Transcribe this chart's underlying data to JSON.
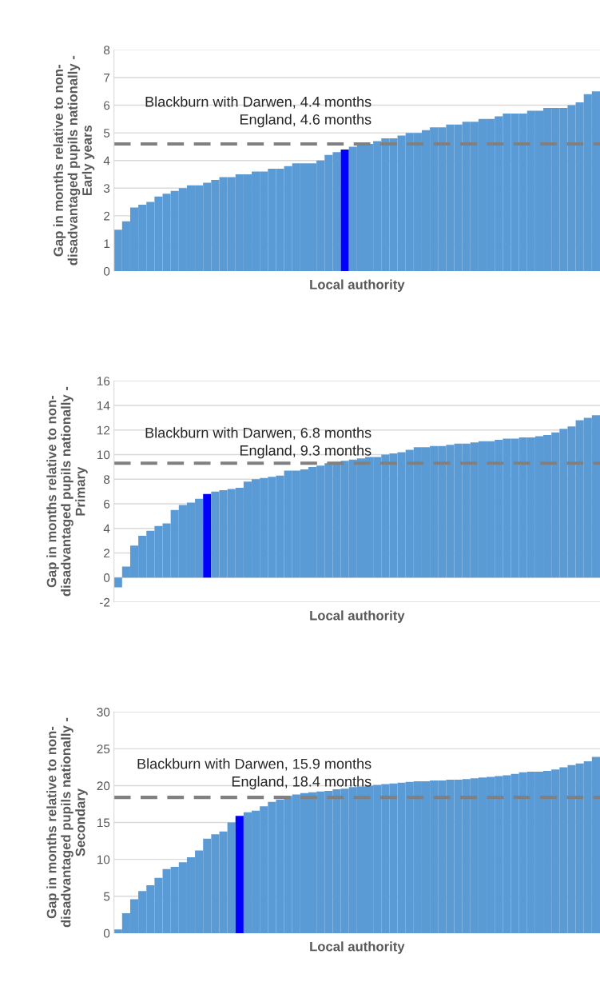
{
  "chart_data": [
    {
      "type": "bar",
      "ylabel": "Gap in months relative to non-\ndisadvantaged pupils nationally -\nEarly years",
      "xlabel": "Local authority",
      "categories": [
        null,
        null,
        null,
        null,
        null,
        null,
        null,
        null,
        null,
        null,
        null,
        null,
        null,
        null,
        null,
        null,
        null,
        null,
        null,
        null,
        null,
        null,
        null,
        null,
        null,
        null,
        null,
        null,
        null,
        null,
        null,
        null,
        null,
        null,
        null,
        null,
        null,
        null,
        null,
        null,
        null,
        null,
        null,
        null,
        null,
        null,
        null,
        null,
        null,
        null,
        null,
        null,
        null,
        null,
        null,
        null,
        null,
        null,
        null,
        null
      ],
      "values": [
        1.5,
        1.8,
        2.3,
        2.4,
        2.5,
        2.7,
        2.8,
        2.9,
        3.0,
        3.1,
        3.1,
        3.2,
        3.3,
        3.4,
        3.4,
        3.5,
        3.5,
        3.6,
        3.6,
        3.7,
        3.7,
        3.8,
        3.9,
        3.9,
        3.9,
        4.0,
        4.2,
        4.3,
        4.4,
        4.5,
        4.6,
        4.6,
        4.7,
        4.8,
        4.8,
        4.9,
        5.0,
        5.0,
        5.1,
        5.2,
        5.2,
        5.3,
        5.3,
        5.4,
        5.4,
        5.5,
        5.5,
        5.6,
        5.7,
        5.7,
        5.7,
        5.8,
        5.8,
        5.9,
        5.9,
        5.9,
        6.0,
        6.1,
        6.4,
        6.5
      ],
      "colors": [
        "#5b9bd5",
        "#5b9bd5",
        "#5b9bd5",
        "#5b9bd5",
        "#5b9bd5",
        "#5b9bd5",
        "#5b9bd5",
        "#5b9bd5",
        "#5b9bd5",
        "#5b9bd5",
        "#5b9bd5",
        "#5b9bd5",
        "#5b9bd5",
        "#5b9bd5",
        "#5b9bd5",
        "#5b9bd5",
        "#5b9bd5",
        "#5b9bd5",
        "#5b9bd5",
        "#5b9bd5",
        "#5b9bd5",
        "#5b9bd5",
        "#5b9bd5",
        "#5b9bd5",
        "#5b9bd5",
        "#5b9bd5",
        "#5b9bd5",
        "#5b9bd5",
        "#0000ff",
        "#5b9bd5",
        "#5b9bd5",
        "#5b9bd5",
        "#5b9bd5",
        "#5b9bd5",
        "#5b9bd5",
        "#5b9bd5",
        "#5b9bd5",
        "#5b9bd5",
        "#5b9bd5",
        "#5b9bd5",
        "#5b9bd5",
        "#5b9bd5",
        "#5b9bd5",
        "#5b9bd5",
        "#5b9bd5",
        "#5b9bd5",
        "#5b9bd5",
        "#5b9bd5",
        "#5b9bd5",
        "#5b9bd5",
        "#5b9bd5",
        "#5b9bd5",
        "#5b9bd5",
        "#5b9bd5",
        "#5b9bd5",
        "#5b9bd5",
        "#5b9bd5",
        "#5b9bd5",
        "#5b9bd5",
        "#5b9bd5"
      ],
      "ylim": [
        0,
        8
      ],
      "yticks": [
        0,
        1,
        2,
        3,
        4,
        5,
        6,
        7,
        8
      ],
      "grid": "y",
      "ref_lines": [
        {
          "axis": "y",
          "value": 4.6,
          "label": "England, 4.6 months",
          "color": "#808080",
          "line_style": "dashed"
        }
      ],
      "annotations": [
        "Blackburn with Darwen, 4.4 months"
      ]
    },
    {
      "type": "bar",
      "ylabel": "Gap in months relative to non-\ndisadvantaged pupils nationally -\nPrimary",
      "xlabel": "Local authority",
      "categories": [
        null,
        null,
        null,
        null,
        null,
        null,
        null,
        null,
        null,
        null,
        null,
        null,
        null,
        null,
        null,
        null,
        null,
        null,
        null,
        null,
        null,
        null,
        null,
        null,
        null,
        null,
        null,
        null,
        null,
        null,
        null,
        null,
        null,
        null,
        null,
        null,
        null,
        null,
        null,
        null,
        null,
        null,
        null,
        null,
        null,
        null,
        null,
        null,
        null,
        null,
        null,
        null,
        null,
        null,
        null,
        null,
        null,
        null,
        null,
        null
      ],
      "values": [
        -0.8,
        0.9,
        2.6,
        3.4,
        3.8,
        4.2,
        4.4,
        5.5,
        5.9,
        6.1,
        6.4,
        6.8,
        7.0,
        7.1,
        7.2,
        7.3,
        7.8,
        8.0,
        8.1,
        8.2,
        8.3,
        8.7,
        8.7,
        8.8,
        9.0,
        9.1,
        9.3,
        9.4,
        9.5,
        9.6,
        9.7,
        9.8,
        9.8,
        10.0,
        10.1,
        10.2,
        10.4,
        10.6,
        10.6,
        10.7,
        10.7,
        10.8,
        10.9,
        10.9,
        11.0,
        11.1,
        11.1,
        11.2,
        11.3,
        11.3,
        11.4,
        11.4,
        11.5,
        11.6,
        11.8,
        12.1,
        12.3,
        12.8,
        13.0,
        13.2
      ],
      "colors": [
        "#5b9bd5",
        "#5b9bd5",
        "#5b9bd5",
        "#5b9bd5",
        "#5b9bd5",
        "#5b9bd5",
        "#5b9bd5",
        "#5b9bd5",
        "#5b9bd5",
        "#5b9bd5",
        "#5b9bd5",
        "#0000ff",
        "#5b9bd5",
        "#5b9bd5",
        "#5b9bd5",
        "#5b9bd5",
        "#5b9bd5",
        "#5b9bd5",
        "#5b9bd5",
        "#5b9bd5",
        "#5b9bd5",
        "#5b9bd5",
        "#5b9bd5",
        "#5b9bd5",
        "#5b9bd5",
        "#5b9bd5",
        "#5b9bd5",
        "#5b9bd5",
        "#5b9bd5",
        "#5b9bd5",
        "#5b9bd5",
        "#5b9bd5",
        "#5b9bd5",
        "#5b9bd5",
        "#5b9bd5",
        "#5b9bd5",
        "#5b9bd5",
        "#5b9bd5",
        "#5b9bd5",
        "#5b9bd5",
        "#5b9bd5",
        "#5b9bd5",
        "#5b9bd5",
        "#5b9bd5",
        "#5b9bd5",
        "#5b9bd5",
        "#5b9bd5",
        "#5b9bd5",
        "#5b9bd5",
        "#5b9bd5",
        "#5b9bd5",
        "#5b9bd5",
        "#5b9bd5",
        "#5b9bd5",
        "#5b9bd5",
        "#5b9bd5",
        "#5b9bd5",
        "#5b9bd5",
        "#5b9bd5",
        "#5b9bd5"
      ],
      "ylim": [
        -2,
        16
      ],
      "yticks": [
        -2,
        0,
        2,
        4,
        6,
        8,
        10,
        12,
        14,
        16
      ],
      "grid": "y",
      "ref_lines": [
        {
          "axis": "y",
          "value": 9.3,
          "label": "England, 9.3 months",
          "color": "#808080",
          "line_style": "dashed"
        }
      ],
      "annotations": [
        "Blackburn with Darwen, 6.8 months"
      ]
    },
    {
      "type": "bar",
      "ylabel": "Gap in months relative to non-\ndisadvantaged pupils nationally -\nSecondary",
      "xlabel": "Local authority",
      "categories": [
        null,
        null,
        null,
        null,
        null,
        null,
        null,
        null,
        null,
        null,
        null,
        null,
        null,
        null,
        null,
        null,
        null,
        null,
        null,
        null,
        null,
        null,
        null,
        null,
        null,
        null,
        null,
        null,
        null,
        null,
        null,
        null,
        null,
        null,
        null,
        null,
        null,
        null,
        null,
        null,
        null,
        null,
        null,
        null,
        null,
        null,
        null,
        null,
        null,
        null,
        null,
        null,
        null,
        null,
        null,
        null,
        null,
        null,
        null,
        null
      ],
      "values": [
        0.5,
        2.7,
        4.6,
        5.7,
        6.5,
        7.5,
        8.7,
        9.0,
        9.6,
        10.3,
        11.2,
        12.8,
        13.4,
        13.8,
        15.0,
        15.9,
        16.4,
        16.6,
        17.2,
        17.8,
        18.1,
        18.6,
        18.8,
        19.0,
        19.1,
        19.2,
        19.3,
        19.5,
        19.6,
        19.8,
        19.9,
        20.0,
        20.1,
        20.2,
        20.3,
        20.4,
        20.5,
        20.6,
        20.6,
        20.7,
        20.7,
        20.8,
        20.8,
        20.9,
        21.0,
        21.1,
        21.2,
        21.3,
        21.4,
        21.6,
        21.8,
        21.9,
        21.9,
        22.0,
        22.2,
        22.5,
        22.8,
        23.0,
        23.3,
        23.9
      ],
      "colors": [
        "#5b9bd5",
        "#5b9bd5",
        "#5b9bd5",
        "#5b9bd5",
        "#5b9bd5",
        "#5b9bd5",
        "#5b9bd5",
        "#5b9bd5",
        "#5b9bd5",
        "#5b9bd5",
        "#5b9bd5",
        "#5b9bd5",
        "#5b9bd5",
        "#5b9bd5",
        "#5b9bd5",
        "#0000ff",
        "#5b9bd5",
        "#5b9bd5",
        "#5b9bd5",
        "#5b9bd5",
        "#5b9bd5",
        "#5b9bd5",
        "#5b9bd5",
        "#5b9bd5",
        "#5b9bd5",
        "#5b9bd5",
        "#5b9bd5",
        "#5b9bd5",
        "#5b9bd5",
        "#5b9bd5",
        "#5b9bd5",
        "#5b9bd5",
        "#5b9bd5",
        "#5b9bd5",
        "#5b9bd5",
        "#5b9bd5",
        "#5b9bd5",
        "#5b9bd5",
        "#5b9bd5",
        "#5b9bd5",
        "#5b9bd5",
        "#5b9bd5",
        "#5b9bd5",
        "#5b9bd5",
        "#5b9bd5",
        "#5b9bd5",
        "#5b9bd5",
        "#5b9bd5",
        "#5b9bd5",
        "#5b9bd5",
        "#5b9bd5",
        "#5b9bd5",
        "#5b9bd5",
        "#5b9bd5",
        "#5b9bd5",
        "#5b9bd5",
        "#5b9bd5",
        "#5b9bd5",
        "#5b9bd5",
        "#5b9bd5"
      ],
      "ylim": [
        0,
        30
      ],
      "yticks": [
        0,
        5,
        10,
        15,
        20,
        25,
        30
      ],
      "grid": "y",
      "ref_lines": [
        {
          "axis": "y",
          "value": 18.4,
          "label": "England, 18.4 months",
          "color": "#808080",
          "line_style": "dashed"
        }
      ],
      "annotations": [
        "Blackburn with Darwen, 15.9 months"
      ]
    }
  ]
}
